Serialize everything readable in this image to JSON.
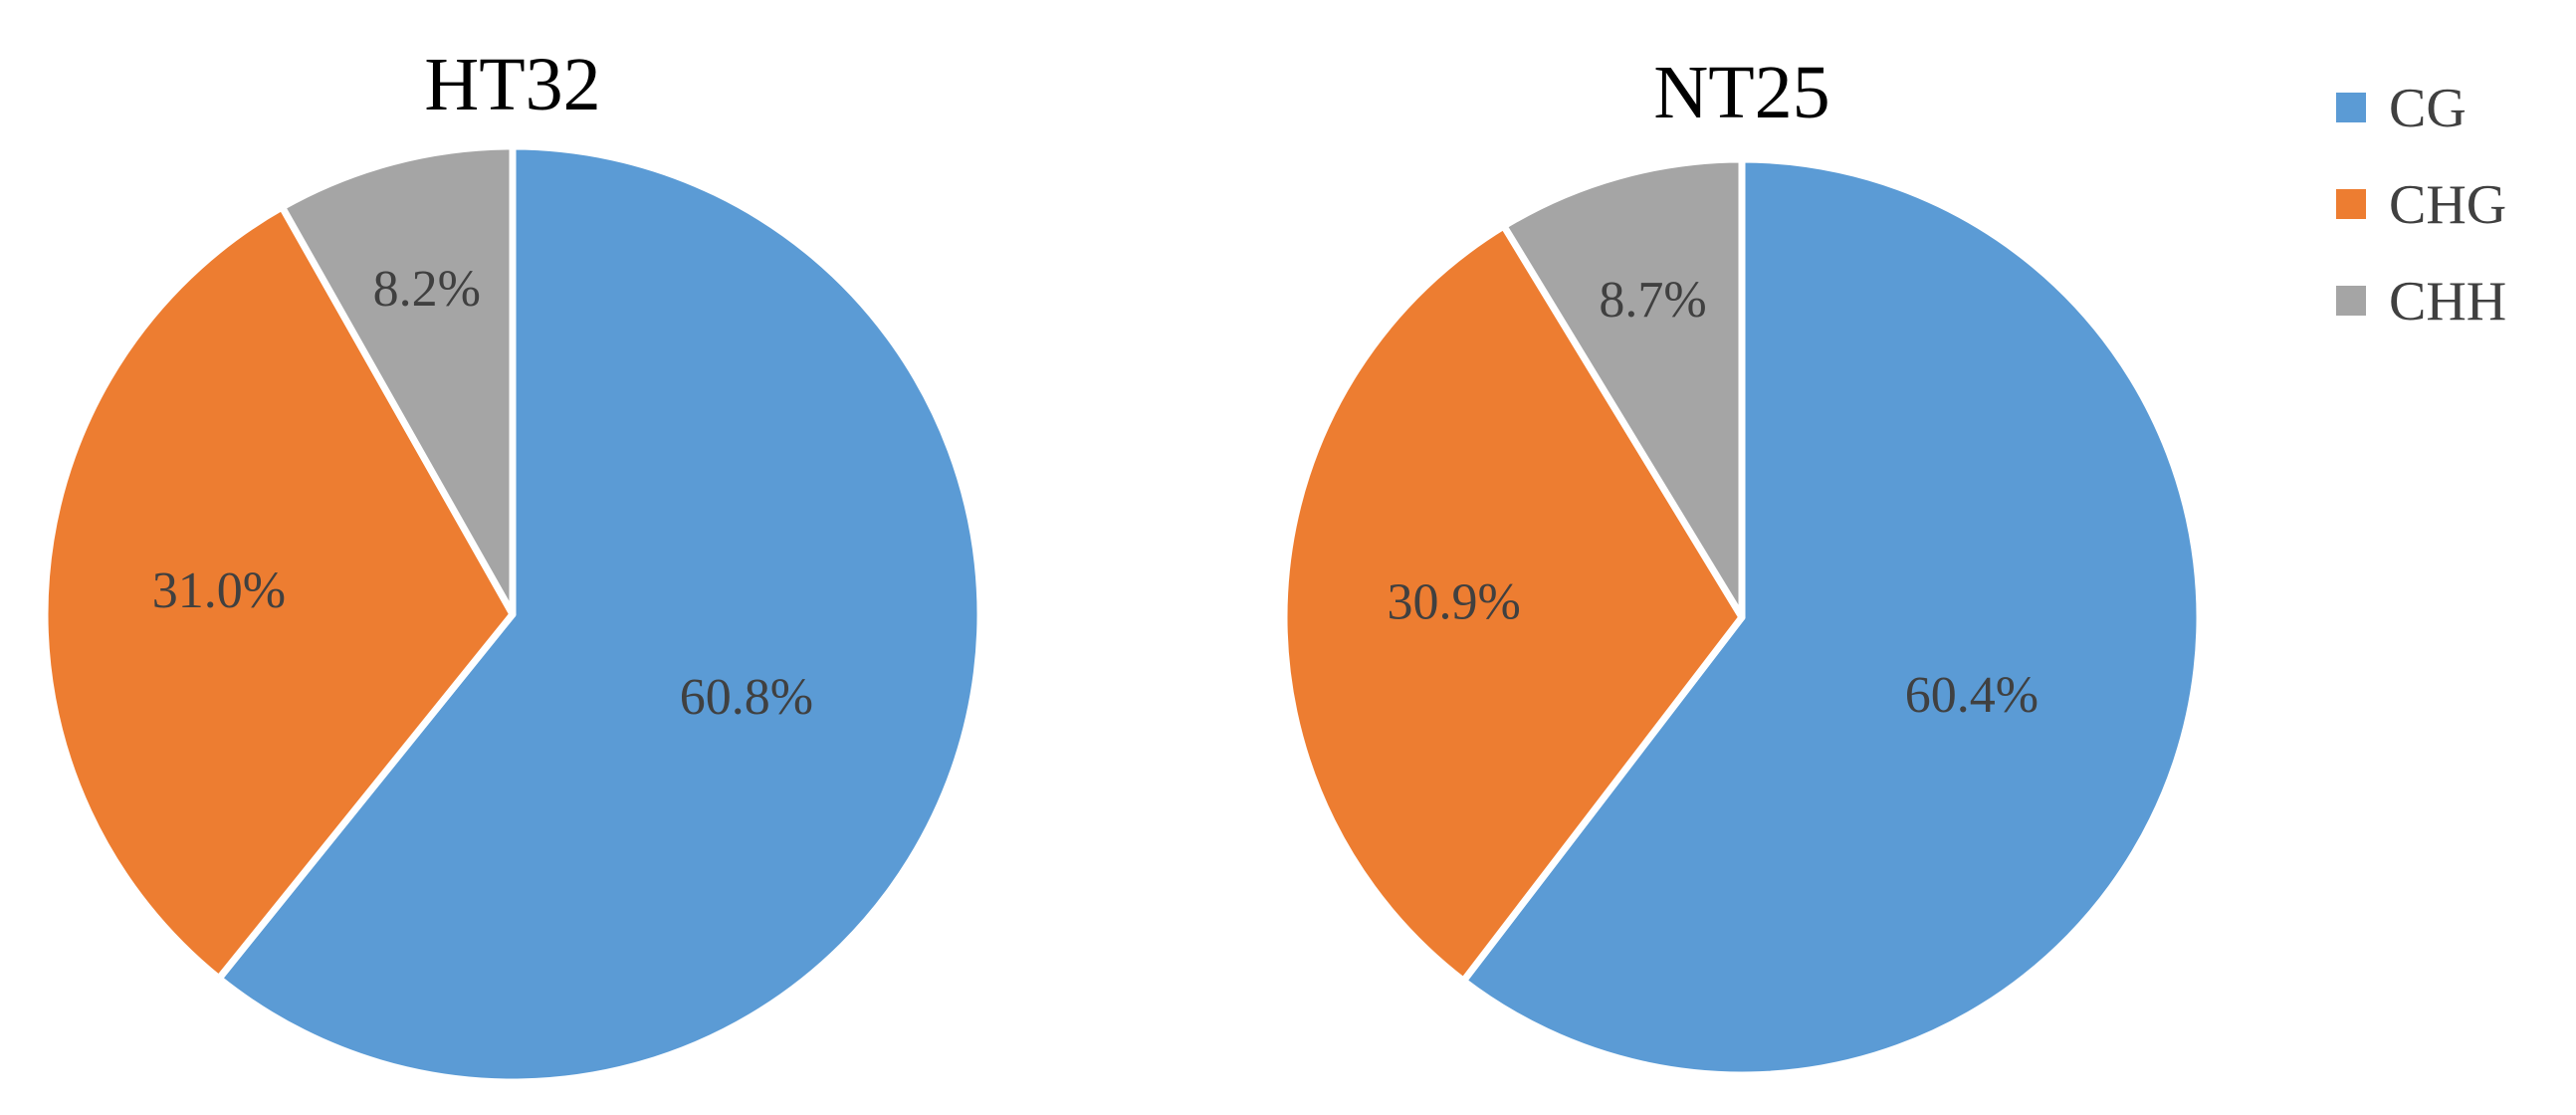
{
  "colors": {
    "CG": "#5B9BD5",
    "CHG": "#ED7D31",
    "CHH": "#A5A5A5"
  },
  "legend": {
    "position": "top-right",
    "items": [
      "CG",
      "CHG",
      "CHH"
    ]
  },
  "chart_data": [
    {
      "type": "pie",
      "title": "HT32",
      "categories": [
        "CG",
        "CHG",
        "CHH"
      ],
      "values": [
        60.8,
        31.0,
        8.2
      ],
      "labels": [
        "60.8%",
        "31.0%",
        "8.2%"
      ],
      "start_angle": "12 o'clock",
      "direction": "clockwise"
    },
    {
      "type": "pie",
      "title": "NT25",
      "categories": [
        "CG",
        "CHG",
        "CHH"
      ],
      "values": [
        60.4,
        30.9,
        8.7
      ],
      "labels": [
        "60.4%",
        "30.9%",
        "8.7%"
      ],
      "start_angle": "12 o'clock",
      "direction": "clockwise"
    }
  ]
}
